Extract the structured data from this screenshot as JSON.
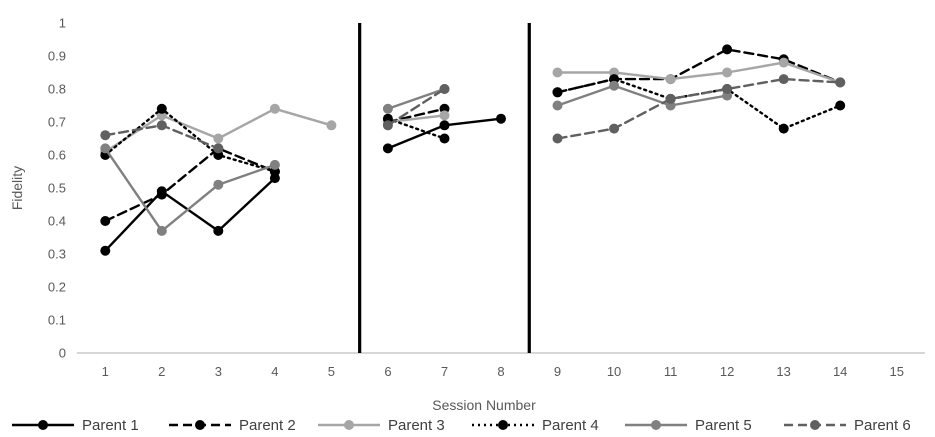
{
  "chart_data": {
    "type": "line",
    "title": "",
    "xlabel": "Session Number",
    "ylabel": "Fidelity",
    "xlim": [
      0.5,
      15.5
    ],
    "ylim": [
      0,
      1
    ],
    "x_ticks": [
      1,
      2,
      3,
      4,
      5,
      6,
      7,
      8,
      9,
      10,
      11,
      12,
      13,
      14,
      15
    ],
    "y_ticks": [
      0,
      0.1,
      0.2,
      0.3,
      0.4,
      0.5,
      0.6,
      0.7,
      0.8,
      0.9,
      1
    ],
    "y_tick_labels": [
      "0",
      "0.1",
      "0.2",
      "0.3",
      "0.4",
      "0.5",
      "0.6",
      "0.7",
      "0.8",
      "0.9",
      "1"
    ],
    "phase_change_lines_at": [
      5.5,
      8.5
    ],
    "grid": false,
    "legend_position": "bottom",
    "series": [
      {
        "name": "Parent 1",
        "color": "#000000",
        "dash": "solid",
        "segments": [
          [
            [
              1,
              0.31
            ],
            [
              2,
              0.49
            ],
            [
              3,
              0.37
            ],
            [
              4,
              0.53
            ]
          ],
          [
            [
              6,
              0.62
            ],
            [
              7,
              0.69
            ],
            [
              8,
              0.71
            ]
          ],
          []
        ]
      },
      {
        "name": "Parent 2",
        "color": "#000000",
        "dash": "dashed",
        "segments": [
          [
            [
              1,
              0.4
            ],
            [
              2,
              0.48
            ],
            [
              3,
              0.62
            ],
            [
              4,
              0.55
            ]
          ],
          [
            [
              6,
              0.7
            ],
            [
              7,
              0.74
            ]
          ],
          [
            [
              9,
              0.79
            ],
            [
              10,
              0.83
            ],
            [
              11,
              0.83
            ],
            [
              12,
              0.92
            ],
            [
              13,
              0.89
            ],
            [
              14,
              0.82
            ]
          ]
        ]
      },
      {
        "name": "Parent 3",
        "color": "#a6a6a6",
        "dash": "solid",
        "segments": [
          [
            [
              1,
              0.61
            ],
            [
              2,
              0.72
            ],
            [
              3,
              0.65
            ],
            [
              4,
              0.74
            ],
            [
              5,
              0.69
            ]
          ],
          [
            [
              6,
              0.7
            ],
            [
              7,
              0.72
            ]
          ],
          [
            [
              9,
              0.85
            ],
            [
              10,
              0.85
            ],
            [
              11,
              0.83
            ],
            [
              12,
              0.85
            ],
            [
              13,
              0.88
            ],
            [
              14,
              0.82
            ]
          ]
        ]
      },
      {
        "name": "Parent 4",
        "color": "#000000",
        "dash": "dotted",
        "segments": [
          [
            [
              1,
              0.6
            ],
            [
              2,
              0.74
            ],
            [
              3,
              0.6
            ],
            [
              4,
              0.55
            ]
          ],
          [
            [
              6,
              0.71
            ],
            [
              7,
              0.65
            ]
          ],
          [
            [
              9,
              0.79
            ],
            [
              10,
              0.83
            ],
            [
              11,
              0.77
            ],
            [
              12,
              0.8
            ],
            [
              13,
              0.68
            ],
            [
              14,
              0.75
            ]
          ]
        ]
      },
      {
        "name": "Parent 5",
        "color": "#808080",
        "dash": "solid",
        "segments": [
          [
            [
              1,
              0.62
            ],
            [
              2,
              0.37
            ],
            [
              3,
              0.51
            ],
            [
              4,
              0.57
            ]
          ],
          [
            [
              6,
              0.74
            ],
            [
              7,
              0.8
            ]
          ],
          [
            [
              9,
              0.75
            ],
            [
              10,
              0.81
            ],
            [
              11,
              0.75
            ],
            [
              12,
              0.78
            ]
          ]
        ]
      },
      {
        "name": "Parent 6",
        "color": "#606060",
        "dash": "dashed",
        "segments": [
          [
            [
              1,
              0.66
            ],
            [
              2,
              0.69
            ],
            [
              3,
              0.62
            ]
          ],
          [
            [
              6,
              0.69
            ],
            [
              7,
              0.8
            ]
          ],
          [
            [
              9,
              0.65
            ],
            [
              10,
              0.68
            ],
            [
              11,
              0.77
            ],
            [
              12,
              0.8
            ],
            [
              13,
              0.83
            ],
            [
              14,
              0.82
            ]
          ]
        ]
      }
    ]
  }
}
